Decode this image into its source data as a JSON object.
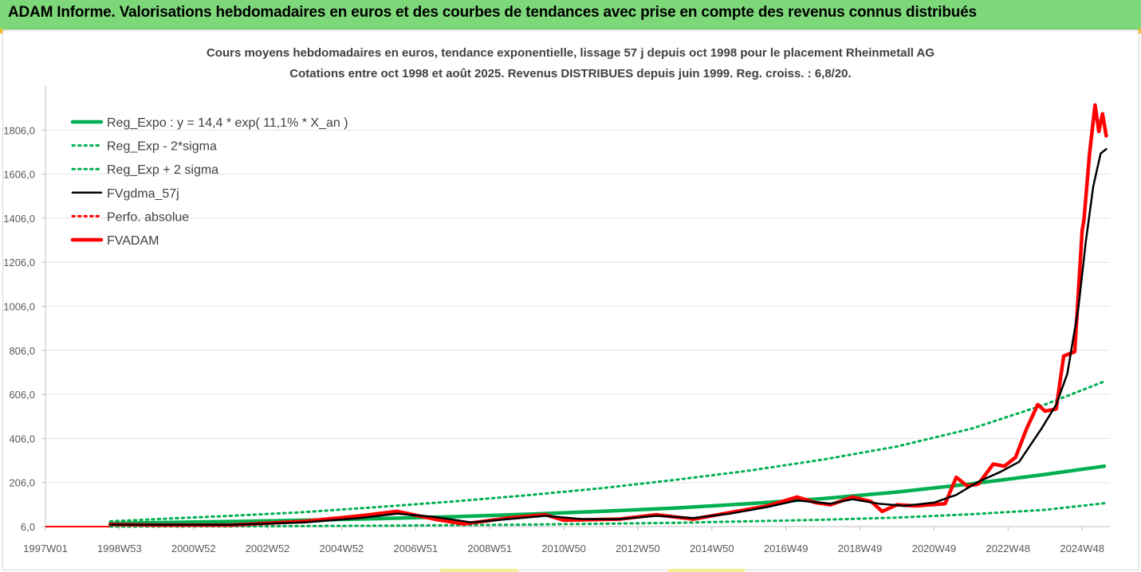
{
  "header": {
    "banner": "ADAM Informe. Valorisations hebdomadaires en euros et des courbes de tendances avec prise en compte des revenus connus distribués"
  },
  "colors": {
    "banner_bg": "#7dd87a",
    "reg_expo": "#00b050",
    "fvgdma": "#000000",
    "fvadam": "#ff0000",
    "perfo": "#ff0000",
    "axis_text": "#595959"
  },
  "chart_data": {
    "type": "line",
    "title_line1": "Cours moyens hebdomadaires en euros, tendance exponentielle, lissage 57 j depuis oct 1998 pour le placement Rheinmetall AG",
    "title_line2": "Cotations entre oct 1998 et août 2025.  Revenus DISTRIBUES depuis juin 1999.  Reg. croiss. : 6,8/20.",
    "y_ticks": [
      "6,0",
      "206,0",
      "406,0",
      "606,0",
      "806,0",
      "1006,0",
      "1206,0",
      "1406,0",
      "1606,0",
      "1806,0"
    ],
    "y_tick_values": [
      6,
      206,
      406,
      606,
      806,
      1006,
      1206,
      1406,
      1606,
      1806
    ],
    "ylim": [
      6,
      2006
    ],
    "x_ticks": [
      "1997W01",
      "1998W53",
      "2000W52",
      "2002W52",
      "2004W52",
      "2006W51",
      "2008W51",
      "2010W50",
      "2012W50",
      "2014W50",
      "2016W49",
      "2018W49",
      "2020W49",
      "2022W48",
      "2024W48"
    ],
    "x_tick_years": [
      1997.0,
      1999.0,
      2001.0,
      2003.0,
      2005.0,
      2007.0,
      2009.0,
      2011.0,
      2013.0,
      2015.0,
      2017.0,
      2019.0,
      2021.0,
      2023.0,
      2025.0
    ],
    "xlim": [
      1997.0,
      2025.75
    ],
    "legend": {
      "position": "top-left",
      "entries": [
        {
          "label": "Reg_Expo : y = 14,4 * exp( 11,1% *  X_an )",
          "style": "solid-thick",
          "color": "#00b050"
        },
        {
          "label": "Reg_Exp - 2*sigma",
          "style": "dotted",
          "color": "#00b050"
        },
        {
          "label": "Reg_Exp + 2 sigma",
          "style": "dotted",
          "color": "#00b050"
        },
        {
          "label": "FVgdma_57j",
          "style": "solid",
          "color": "#000000"
        },
        {
          "label": "Perfo. absolue",
          "style": "dotted",
          "color": "#ff0000"
        },
        {
          "label": "FVADAM",
          "style": "solid-thick",
          "color": "#ff0000"
        }
      ]
    },
    "series": [
      {
        "name": "Reg_Expo : y = 14,4 * exp( 11,1% *  X_an )",
        "x": [
          1998.75,
          2000,
          2002,
          2004,
          2006,
          2008,
          2010,
          2012,
          2014,
          2016,
          2018,
          2020,
          2022,
          2024,
          2025.6
        ],
        "y": [
          20,
          24,
          29,
          35,
          42,
          51,
          62,
          75,
          90,
          110,
          133,
          163,
          200,
          243,
          280
        ]
      },
      {
        "name": "Reg_Exp - 2*sigma",
        "x": [
          1998.75,
          2002,
          2006,
          2010,
          2014,
          2018,
          2020,
          2022,
          2024,
          2025.6
        ],
        "y": [
          6,
          7,
          10,
          15,
          23,
          37,
          47,
          62,
          82,
          112
        ]
      },
      {
        "name": "Reg_Exp + 2 sigma",
        "x": [
          1998.75,
          2000,
          2002,
          2004,
          2006,
          2008,
          2010,
          2012,
          2014,
          2016,
          2018,
          2020,
          2022,
          2024,
          2025.6
        ],
        "y": [
          30,
          40,
          55,
          72,
          95,
          120,
          148,
          180,
          218,
          260,
          310,
          370,
          450,
          560,
          665
        ]
      },
      {
        "name": "FVgdma_57j",
        "x": [
          1998.75,
          2000,
          2002,
          2004,
          2005.5,
          2006.5,
          2007.5,
          2008.5,
          2009.5,
          2010.5,
          2011.5,
          2012.5,
          2013.5,
          2014.5,
          2015.5,
          2016.5,
          2017.3,
          2018.2,
          2018.8,
          2019.5,
          2020.2,
          2021,
          2021.6,
          2022.2,
          2022.8,
          2023.3,
          2023.9,
          2024.3,
          2024.6,
          2024.9,
          2025.1,
          2025.3,
          2025.5,
          2025.65
        ],
        "y": [
          15,
          14,
          14,
          25,
          45,
          65,
          50,
          25,
          40,
          55,
          40,
          40,
          55,
          45,
          65,
          95,
          125,
          110,
          130,
          110,
          100,
          115,
          150,
          210,
          255,
          300,
          450,
          560,
          700,
          1000,
          1300,
          1550,
          1700,
          1720
        ]
      },
      {
        "name": "FVADAM",
        "x": [
          1998.75,
          2000,
          2002,
          2004,
          2005.5,
          2006.5,
          2007.5,
          2008.3,
          2009.5,
          2010.5,
          2011,
          2012.5,
          2013.5,
          2014.5,
          2015.5,
          2016.5,
          2017.3,
          2017.8,
          2018.2,
          2018.8,
          2019.3,
          2019.6,
          2020,
          2020.5,
          2021.3,
          2021.6,
          2021.9,
          2022.2,
          2022.6,
          2022.9,
          2023.2,
          2023.5,
          2023.8,
          2024.0,
          2024.3,
          2024.5,
          2024.8,
          2025.0,
          2025.05,
          2025.2,
          2025.35,
          2025.45,
          2025.55,
          2025.65
        ],
        "y": [
          16,
          13,
          13,
          30,
          55,
          75,
          40,
          18,
          45,
          60,
          35,
          40,
          60,
          40,
          70,
          100,
          140,
          115,
          105,
          140,
          120,
          75,
          105,
          100,
          110,
          230,
          190,
          200,
          290,
          280,
          320,
          450,
          560,
          530,
          540,
          780,
          800,
          1350,
          1400,
          1700,
          1920,
          1800,
          1880,
          1780
        ]
      }
    ]
  }
}
